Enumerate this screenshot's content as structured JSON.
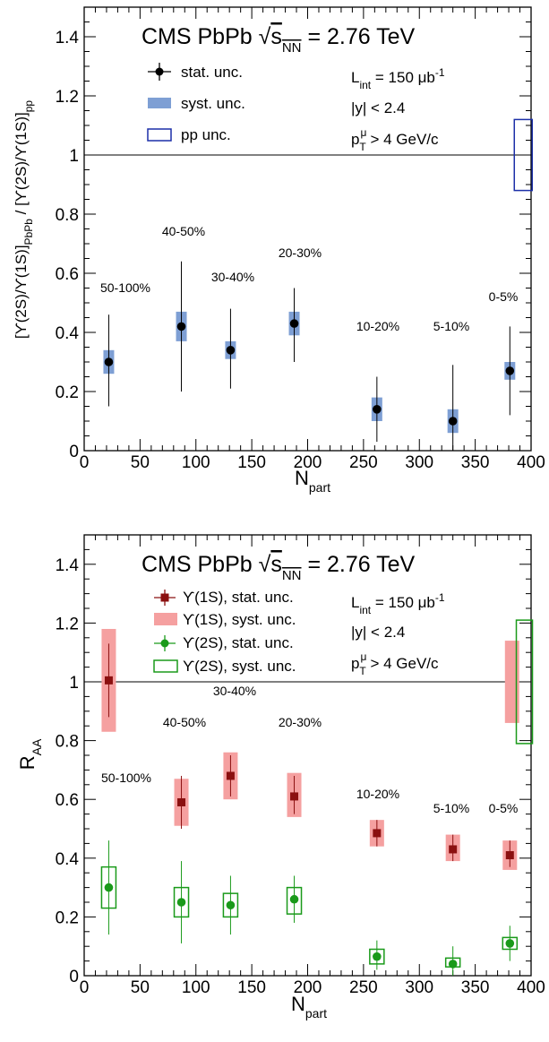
{
  "chart_data": [
    {
      "type": "scatter",
      "title": "CMS PbPb √s_NN = 2.76 TeV",
      "info": [
        "L_int = 150 μb⁻¹",
        "|y| < 2.4",
        "p_T^μ > 4 GeV/c"
      ],
      "xlabel": "N_part",
      "ylabel": "[ϒ(2S)/ϒ(1S)]_PbPb / [ϒ(2S)/ϒ(1S)]_pp",
      "xlim": [
        0,
        400
      ],
      "ylim": [
        0,
        1.5
      ],
      "x_ticks": [
        0,
        50,
        100,
        150,
        200,
        250,
        300,
        350,
        400
      ],
      "y_ticks": [
        0,
        0.2,
        0.4,
        0.6,
        0.8,
        1,
        1.2,
        1.4
      ],
      "reference_line": 1,
      "legend": [
        "stat. unc.",
        "syst. unc.",
        "pp unc."
      ],
      "colors": {
        "points": "#000000",
        "syst": "#7e9fd4",
        "pp_box": "#1c2fa8"
      },
      "pp_uncertainty": {
        "x": 393,
        "low": 0.88,
        "high": 1.12
      },
      "points": [
        {
          "centrality": "50-100%",
          "x": 22,
          "y": 0.3,
          "stat": [
            0.15,
            0.46
          ],
          "syst": [
            0.26,
            0.34
          ]
        },
        {
          "centrality": "40-50%",
          "x": 87,
          "y": 0.42,
          "stat": [
            0.2,
            0.64
          ],
          "syst": [
            0.37,
            0.47
          ]
        },
        {
          "centrality": "30-40%",
          "x": 131,
          "y": 0.34,
          "stat": [
            0.21,
            0.48
          ],
          "syst": [
            0.31,
            0.37
          ]
        },
        {
          "centrality": "20-30%",
          "x": 188,
          "y": 0.43,
          "stat": [
            0.3,
            0.55
          ],
          "syst": [
            0.39,
            0.47
          ]
        },
        {
          "centrality": "10-20%",
          "x": 262,
          "y": 0.14,
          "stat": [
            0.03,
            0.25
          ],
          "syst": [
            0.1,
            0.18
          ]
        },
        {
          "centrality": "5-10%",
          "x": 330,
          "y": 0.1,
          "stat": [
            0.0,
            0.29
          ],
          "syst": [
            0.06,
            0.14
          ]
        },
        {
          "centrality": "0-5%",
          "x": 381,
          "y": 0.27,
          "stat": [
            0.12,
            0.42
          ],
          "syst": [
            0.24,
            0.3
          ]
        }
      ]
    },
    {
      "type": "scatter",
      "title": "CMS PbPb √s_NN = 2.76 TeV",
      "info": [
        "L_int = 150 μb⁻¹",
        "|y| < 2.4",
        "p_T^μ > 4 GeV/c"
      ],
      "xlabel": "N_part",
      "ylabel": "R_AA",
      "xlim": [
        0,
        400
      ],
      "ylim": [
        0,
        1.5
      ],
      "x_ticks": [
        0,
        50,
        100,
        150,
        200,
        250,
        300,
        350,
        400
      ],
      "y_ticks": [
        0,
        0.2,
        0.4,
        0.6,
        0.8,
        1,
        1.2,
        1.4
      ],
      "reference_line": 1,
      "legend": [
        "ϒ(1S), stat. unc.",
        "ϒ(1S), syst. unc.",
        "ϒ(2S), stat. unc.",
        "ϒ(2S), syst. unc."
      ],
      "centralities": [
        "50-100%",
        "40-50%",
        "30-40%",
        "20-30%",
        "10-20%",
        "5-10%",
        "0-5%"
      ],
      "colors": {
        "ups1s": "#8b1010",
        "ups1s_syst": "#f5a0a0",
        "ups2s": "#1a9a1a"
      },
      "global_uncertainty": [
        {
          "series": "ϒ(1S)",
          "x": 383,
          "low": 0.86,
          "high": 1.14
        },
        {
          "series": "ϒ(2S)",
          "x": 394,
          "low": 0.79,
          "high": 1.21
        }
      ],
      "series": [
        {
          "name": "ϒ(1S)",
          "points": [
            {
              "x": 22,
              "y": 1.005,
              "stat": [
                0.88,
                1.13
              ],
              "syst": [
                0.83,
                1.18
              ]
            },
            {
              "x": 87,
              "y": 0.59,
              "stat": [
                0.5,
                0.68
              ],
              "syst": [
                0.51,
                0.67
              ]
            },
            {
              "x": 131,
              "y": 0.68,
              "stat": [
                0.61,
                0.75
              ],
              "syst": [
                0.6,
                0.76
              ]
            },
            {
              "x": 188,
              "y": 0.61,
              "stat": [
                0.55,
                0.68
              ],
              "syst": [
                0.54,
                0.69
              ]
            },
            {
              "x": 262,
              "y": 0.485,
              "stat": [
                0.44,
                0.53
              ],
              "syst": [
                0.44,
                0.53
              ]
            },
            {
              "x": 330,
              "y": 0.43,
              "stat": [
                0.39,
                0.48
              ],
              "syst": [
                0.39,
                0.48
              ]
            },
            {
              "x": 381,
              "y": 0.41,
              "stat": [
                0.37,
                0.46
              ],
              "syst": [
                0.36,
                0.46
              ]
            }
          ]
        },
        {
          "name": "ϒ(2S)",
          "points": [
            {
              "x": 22,
              "y": 0.3,
              "stat": [
                0.14,
                0.46
              ],
              "syst": [
                0.23,
                0.37
              ]
            },
            {
              "x": 87,
              "y": 0.25,
              "stat": [
                0.11,
                0.39
              ],
              "syst": [
                0.2,
                0.3
              ]
            },
            {
              "x": 131,
              "y": 0.24,
              "stat": [
                0.14,
                0.34
              ],
              "syst": [
                0.2,
                0.28
              ]
            },
            {
              "x": 188,
              "y": 0.26,
              "stat": [
                0.18,
                0.34
              ],
              "syst": [
                0.21,
                0.3
              ]
            },
            {
              "x": 262,
              "y": 0.065,
              "stat": [
                0.02,
                0.12
              ],
              "syst": [
                0.04,
                0.09
              ]
            },
            {
              "x": 330,
              "y": 0.04,
              "stat": [
                0.0,
                0.1
              ],
              "syst": [
                0.03,
                0.06
              ]
            },
            {
              "x": 381,
              "y": 0.11,
              "stat": [
                0.05,
                0.17
              ],
              "syst": [
                0.09,
                0.13
              ]
            }
          ]
        }
      ]
    }
  ]
}
